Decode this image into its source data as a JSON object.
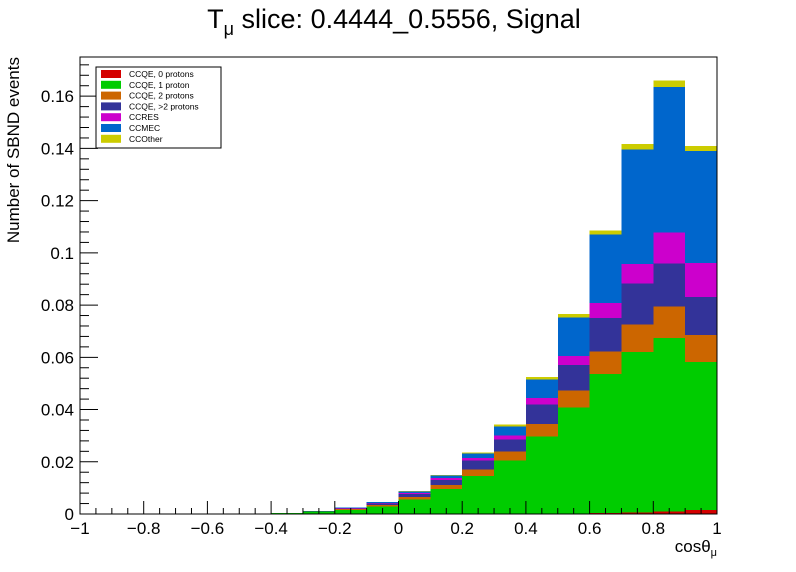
{
  "chart_data": {
    "type": "bar",
    "stacked": true,
    "title": {
      "main": "T",
      "sub": "μ",
      "rest": " slice: 0.4444_0.5556, Signal"
    },
    "xlabel": {
      "main": "cosθ",
      "sub": "μ"
    },
    "ylabel": "Number of SBND events",
    "xlim": [
      -1,
      1
    ],
    "ylim": [
      0,
      0.175
    ],
    "xticks": [
      -1,
      -0.8,
      -0.6,
      -0.4,
      -0.2,
      0,
      0.2,
      0.4,
      0.6,
      0.8,
      1
    ],
    "xtick_labels": [
      "−1",
      "−0.8",
      "−0.6",
      "−0.4",
      "−0.2",
      "0",
      "0.2",
      "0.4",
      "0.6",
      "0.8",
      "1"
    ],
    "yticks": [
      0,
      0.02,
      0.04,
      0.06,
      0.08,
      0.1,
      0.12,
      0.14,
      0.16
    ],
    "ytick_labels": [
      "0",
      "0.02",
      "0.04",
      "0.06",
      "0.08",
      "0.1",
      "0.12",
      "0.14",
      "0.16"
    ],
    "bin_edges": [
      -1,
      -0.9,
      -0.8,
      -0.7,
      -0.6,
      -0.5,
      -0.4,
      -0.3,
      -0.2,
      -0.1,
      0,
      0.1,
      0.2,
      0.3,
      0.4,
      0.5,
      0.6,
      0.7,
      0.8,
      0.9,
      1
    ],
    "legend_position": "top-left",
    "series": [
      {
        "name": "CCQE, 0 protons",
        "color": "#d40000",
        "values": [
          0,
          0,
          0,
          0,
          0,
          0,
          0,
          0,
          0,
          0,
          0,
          0,
          0,
          0,
          0.0001,
          0.0002,
          0.0004,
          0.0006,
          0.001,
          0.0015
        ]
      },
      {
        "name": "CCQE, 1 proton",
        "color": "#00cc00",
        "values": [
          0,
          0,
          0,
          0,
          0,
          0,
          0.0003,
          0.0009,
          0.0016,
          0.0028,
          0.0055,
          0.0095,
          0.0145,
          0.0205,
          0.0295,
          0.0405,
          0.0533,
          0.0614,
          0.0664,
          0.0568
        ]
      },
      {
        "name": "CCQE, 2 protons",
        "color": "#cc6600",
        "values": [
          0,
          0,
          0,
          0,
          0,
          0,
          0,
          0.0001,
          0.0003,
          0.0006,
          0.001,
          0.0016,
          0.0025,
          0.0035,
          0.0048,
          0.0065,
          0.0085,
          0.0105,
          0.012,
          0.0103
        ]
      },
      {
        "name": "CCQE, >2 protons",
        "color": "#333399",
        "values": [
          0,
          0,
          0,
          0,
          0,
          0,
          0,
          0.0001,
          0.0003,
          0.0006,
          0.0012,
          0.002,
          0.0035,
          0.0045,
          0.0075,
          0.0098,
          0.0128,
          0.0158,
          0.0166,
          0.0145
        ]
      },
      {
        "name": "CCRES",
        "color": "#cc00cc",
        "values": [
          0,
          0,
          0,
          0,
          0,
          0,
          0,
          0,
          0.0001,
          0.0002,
          0.0004,
          0.0006,
          0.001,
          0.0015,
          0.0025,
          0.0035,
          0.0058,
          0.0075,
          0.0118,
          0.0131
        ]
      },
      {
        "name": "CCMEC",
        "color": "#0066cc",
        "values": [
          0,
          0,
          0,
          0,
          0,
          0,
          0,
          0.0001,
          0.0002,
          0.0003,
          0.0006,
          0.001,
          0.0017,
          0.0035,
          0.0071,
          0.0148,
          0.0262,
          0.0437,
          0.0557,
          0.0428
        ]
      },
      {
        "name": "CCOther",
        "color": "#cccc00",
        "values": [
          0,
          0,
          0,
          0,
          0,
          0,
          0,
          0,
          0,
          0.0001,
          0.0002,
          0.0003,
          0.0004,
          0.0007,
          0.0009,
          0.0012,
          0.0016,
          0.0021,
          0.0025,
          0.002
        ]
      }
    ]
  }
}
